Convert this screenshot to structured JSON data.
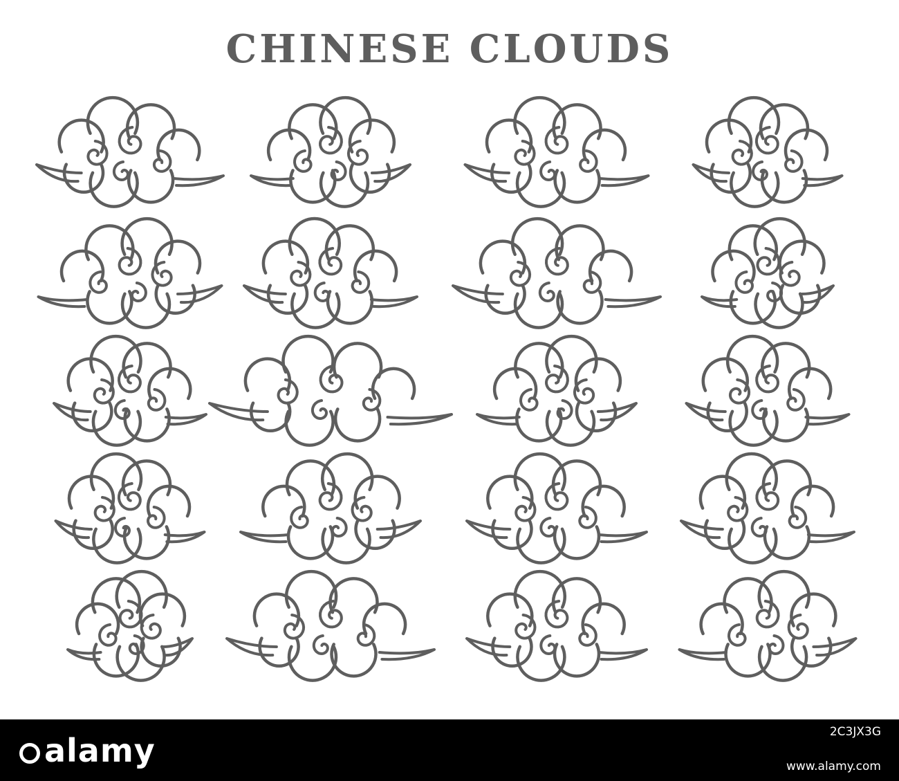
{
  "title": "CHINESE CLOUDS",
  "colors": {
    "stroke": "#5e5e5e",
    "background": "#ffffff",
    "footer": "#000000"
  },
  "grid": {
    "rows": 5,
    "columns": 4,
    "count": 20
  },
  "icon_name": "chinese-cloud-icon",
  "watermark": {
    "brand": "alamy",
    "image_id": "2C3JX3G",
    "url": "www.alamy.com"
  }
}
